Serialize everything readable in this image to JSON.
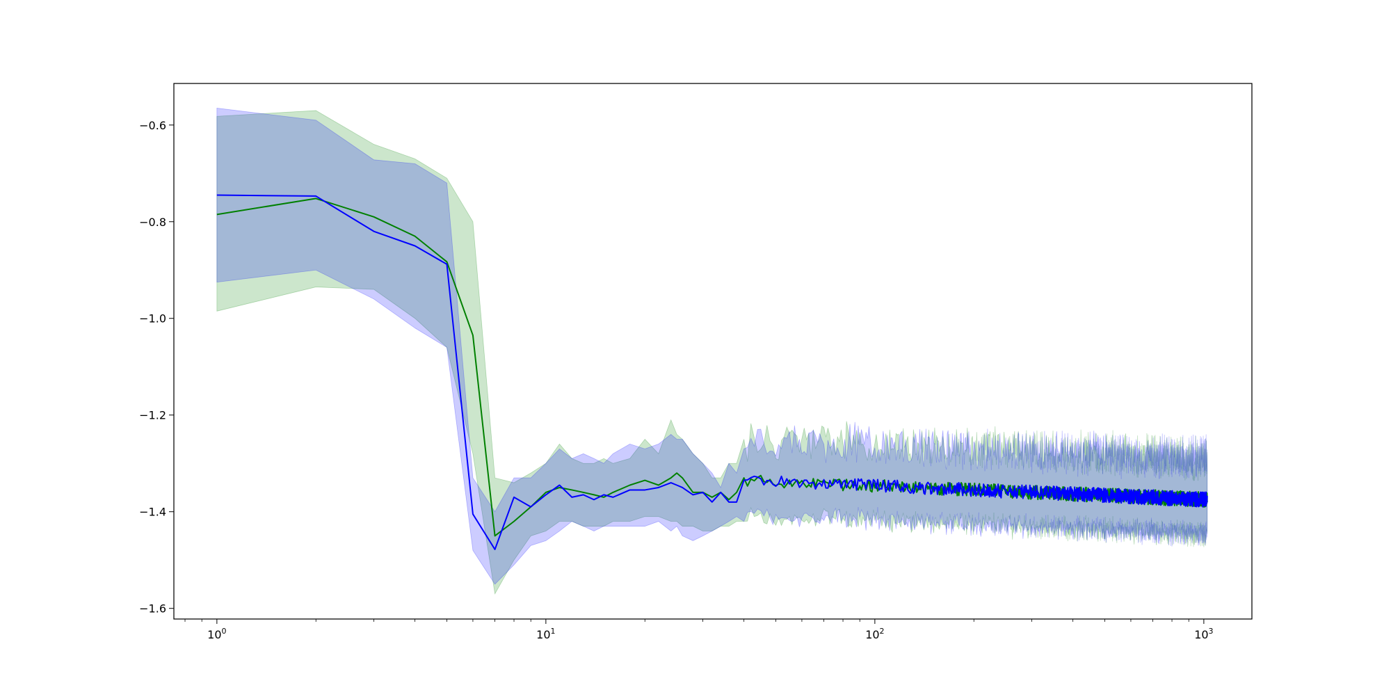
{
  "chart_data": {
    "type": "line",
    "title": "",
    "xlabel": "",
    "ylabel": "",
    "xscale": "log",
    "xlim": [
      0.74,
      1400
    ],
    "ylim": [
      -1.622,
      -0.514
    ],
    "grid": false,
    "legend": "none",
    "x_ticks": [
      {
        "value": 1,
        "base": "10",
        "exp": "0"
      },
      {
        "value": 10,
        "base": "10",
        "exp": "1"
      },
      {
        "value": 100,
        "base": "10",
        "exp": "2"
      },
      {
        "value": 1000,
        "base": "10",
        "exp": "3"
      }
    ],
    "y_ticks": [
      {
        "value": -1.6,
        "label": "−1.6"
      },
      {
        "value": -1.4,
        "label": "−1.4"
      },
      {
        "value": -1.2,
        "label": "−1.2"
      },
      {
        "value": -1.0,
        "label": "−1.0"
      },
      {
        "value": -0.8,
        "label": "−0.8"
      },
      {
        "value": -0.6,
        "label": "−0.6"
      }
    ],
    "tail": {
      "x_start": 40,
      "x_end": 1024,
      "y_center": -1.335,
      "y_end": -1.375,
      "upper_offset": 0.09,
      "lower_offset": -0.075
    },
    "series": [
      {
        "color": "#008000",
        "x": [
          1,
          2,
          3,
          4,
          5,
          6,
          7,
          8,
          9,
          10,
          11,
          12,
          13,
          14,
          15,
          16,
          18,
          20,
          22,
          24,
          25,
          26,
          28,
          30,
          32,
          34,
          36,
          38,
          40
        ],
        "y": [
          -0.785,
          -0.752,
          -0.79,
          -0.83,
          -0.883,
          -1.035,
          -1.45,
          -1.42,
          -1.39,
          -1.36,
          -1.35,
          -1.355,
          -1.36,
          -1.365,
          -1.37,
          -1.36,
          -1.345,
          -1.335,
          -1.345,
          -1.33,
          -1.32,
          -1.33,
          -1.36,
          -1.36,
          -1.37,
          -1.36,
          -1.375,
          -1.36,
          -1.33
        ],
        "upper": [
          -0.582,
          -0.57,
          -0.64,
          -0.67,
          -0.71,
          -0.8,
          -1.33,
          -1.34,
          -1.32,
          -1.3,
          -1.26,
          -1.29,
          -1.3,
          -1.3,
          -1.29,
          -1.3,
          -1.29,
          -1.25,
          -1.28,
          -1.21,
          -1.24,
          -1.25,
          -1.28,
          -1.3,
          -1.33,
          -1.33,
          -1.3,
          -1.3,
          -1.25
        ],
        "lower": [
          -0.985,
          -0.935,
          -0.94,
          -1.0,
          -1.06,
          -1.28,
          -1.57,
          -1.5,
          -1.45,
          -1.44,
          -1.42,
          -1.42,
          -1.43,
          -1.43,
          -1.43,
          -1.42,
          -1.42,
          -1.41,
          -1.41,
          -1.42,
          -1.42,
          -1.43,
          -1.43,
          -1.44,
          -1.44,
          -1.43,
          -1.43,
          -1.42,
          -1.42
        ]
      },
      {
        "color": "#0000ff",
        "x": [
          1,
          2,
          3,
          4,
          5,
          6,
          7,
          8,
          9,
          10,
          11,
          12,
          13,
          14,
          15,
          16,
          18,
          20,
          22,
          24,
          25,
          26,
          28,
          30,
          32,
          34,
          36,
          38,
          40
        ],
        "y": [
          -0.745,
          -0.747,
          -0.82,
          -0.85,
          -0.888,
          -1.405,
          -1.478,
          -1.37,
          -1.39,
          -1.365,
          -1.345,
          -1.37,
          -1.365,
          -1.375,
          -1.365,
          -1.37,
          -1.355,
          -1.355,
          -1.35,
          -1.34,
          -1.345,
          -1.35,
          -1.365,
          -1.36,
          -1.38,
          -1.36,
          -1.38,
          -1.38,
          -1.335
        ],
        "upper": [
          -0.565,
          -0.59,
          -0.672,
          -0.68,
          -0.72,
          -1.33,
          -1.4,
          -1.33,
          -1.33,
          -1.3,
          -1.27,
          -1.29,
          -1.28,
          -1.29,
          -1.3,
          -1.28,
          -1.26,
          -1.27,
          -1.26,
          -1.24,
          -1.25,
          -1.25,
          -1.28,
          -1.3,
          -1.32,
          -1.35,
          -1.3,
          -1.32,
          -1.27
        ],
        "lower": [
          -0.925,
          -0.9,
          -0.96,
          -1.02,
          -1.06,
          -1.48,
          -1.55,
          -1.51,
          -1.47,
          -1.46,
          -1.44,
          -1.42,
          -1.43,
          -1.44,
          -1.43,
          -1.43,
          -1.43,
          -1.43,
          -1.42,
          -1.44,
          -1.43,
          -1.45,
          -1.46,
          -1.45,
          -1.44,
          -1.43,
          -1.42,
          -1.41,
          -1.42
        ]
      }
    ]
  }
}
